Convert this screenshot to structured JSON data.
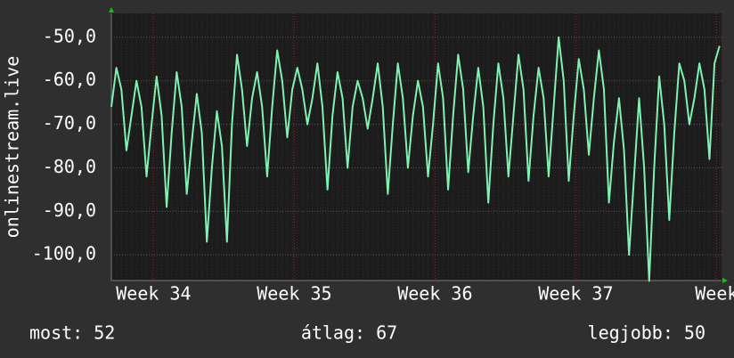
{
  "chart_data": {
    "type": "line",
    "ylabel": "onlinestream.live",
    "x": [
      0,
      0.25,
      0.5,
      0.75,
      1,
      1.25,
      1.5,
      1.75,
      2,
      2.25,
      2.5,
      2.75,
      3,
      3.25,
      3.5,
      3.75,
      4,
      4.25,
      4.5,
      4.75,
      5,
      5.25,
      5.5,
      5.75,
      6,
      6.25,
      6.5,
      6.75,
      7,
      7.25,
      7.5,
      7.75,
      8,
      8.25,
      8.5,
      8.75,
      9,
      9.25,
      9.5,
      9.75,
      10,
      10.25,
      10.5,
      10.75,
      11,
      11.25,
      11.5,
      11.75,
      12,
      12.25,
      12.5,
      12.75,
      13,
      13.25,
      13.5,
      13.75,
      14,
      14.25,
      14.5,
      14.75,
      15,
      15.25,
      15.5,
      15.75,
      16,
      16.25,
      16.5,
      16.75,
      17,
      17.25,
      17.5,
      17.75,
      18,
      18.25,
      18.5,
      18.75,
      19,
      19.25,
      19.5,
      19.75,
      20,
      20.25,
      20.5,
      20.75,
      21,
      21.25,
      21.5,
      21.75,
      22,
      22.25,
      22.5,
      22.75,
      23,
      23.25,
      23.5,
      23.75,
      24,
      24.25,
      24.5,
      24.75,
      25,
      25.25,
      25.5,
      25.75,
      26,
      26.25,
      26.5,
      26.75,
      27,
      27.25,
      27.5,
      27.75,
      28,
      28.25,
      28.5,
      28.75,
      29,
      29.25,
      29.5,
      29.75,
      30,
      30.25
    ],
    "series": [
      {
        "color": "#7ff2b2",
        "values": [
          -66,
          -57,
          -62,
          -76,
          -68,
          -60,
          -66,
          -82,
          -70,
          -59,
          -68,
          -89,
          -72,
          -58,
          -66,
          -86,
          -74,
          -63,
          -72,
          -97,
          -80,
          -67,
          -75,
          -97,
          -70,
          -54,
          -62,
          -75,
          -64,
          -58,
          -66,
          -82,
          -66,
          -53,
          -60,
          -73,
          -62,
          -57,
          -62,
          -70,
          -64,
          -56,
          -66,
          -85,
          -68,
          -58,
          -64,
          -80,
          -66,
          -60,
          -64,
          -71,
          -64,
          -56,
          -66,
          -86,
          -70,
          -56,
          -64,
          -80,
          -68,
          -60,
          -66,
          -82,
          -70,
          -56,
          -64,
          -85,
          -68,
          -54,
          -62,
          -81,
          -68,
          -57,
          -66,
          -88,
          -70,
          -56,
          -64,
          -82,
          -68,
          -54,
          -62,
          -83,
          -68,
          -57,
          -64,
          -82,
          -66,
          -50,
          -60,
          -83,
          -68,
          -55,
          -62,
          -77,
          -64,
          -53,
          -62,
          -88,
          -74,
          -64,
          -76,
          -100,
          -82,
          -64,
          -80,
          -106,
          -80,
          -59,
          -70,
          -92,
          -72,
          -56,
          -60,
          -70,
          -64,
          -56,
          -62,
          -78,
          -56,
          -52
        ]
      }
    ],
    "xlim": [
      0,
      30.35
    ],
    "xticks": [
      {
        "value": 2.1,
        "label": "Week 34"
      },
      {
        "value": 9.1,
        "label": "Week 35"
      },
      {
        "value": 16.1,
        "label": "Week 36"
      },
      {
        "value": 23.1,
        "label": "Week 37"
      },
      {
        "value": 30.1,
        "label": "Week"
      }
    ],
    "ylim": [
      -105.9,
      -44.5
    ],
    "yticks": [
      {
        "value": -50,
        "label": "-50,0"
      },
      {
        "value": -60,
        "label": "-60,0"
      },
      {
        "value": -70,
        "label": "-70,0"
      },
      {
        "value": -80,
        "label": "-80,0"
      },
      {
        "value": -90,
        "label": "-90,0"
      },
      {
        "value": -100,
        "label": "-100,0"
      }
    ],
    "grid": true,
    "stats": [
      "most: 52",
      "átlag: 67",
      "legjobb: 50"
    ]
  }
}
